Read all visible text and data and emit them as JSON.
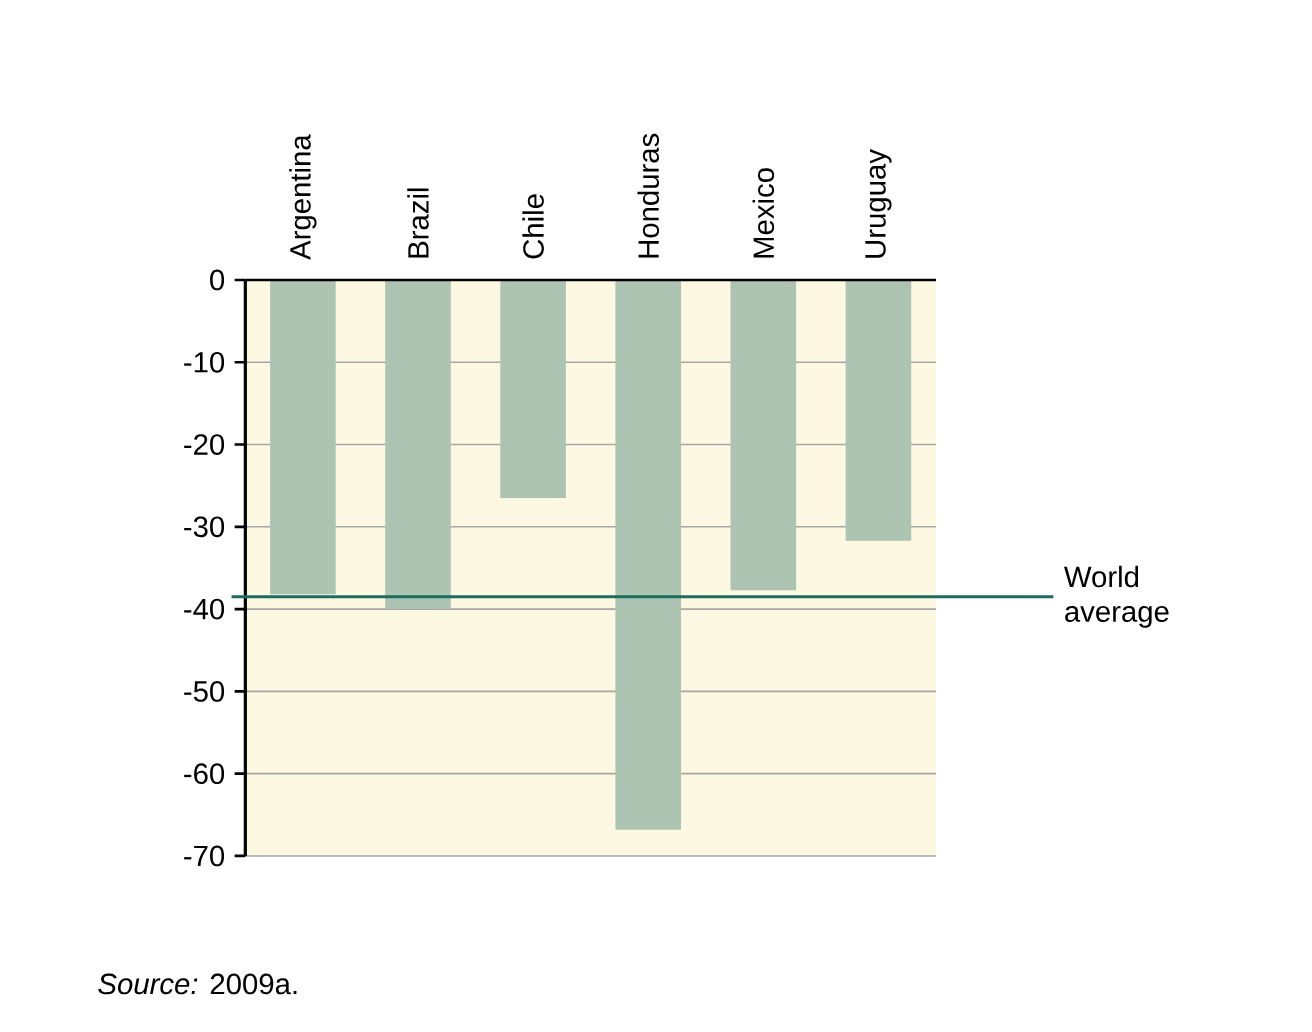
{
  "chart_data": {
    "type": "bar",
    "categories": [
      "Argentina",
      "Brazil",
      "Chile",
      "Honduras",
      "Mexico",
      "Uruguay"
    ],
    "values": [
      -38.2,
      -40.0,
      -26.5,
      -66.8,
      -37.7,
      -31.7
    ],
    "color": "#adc4b2",
    "ylim": [
      -70,
      0
    ],
    "yticks": [
      -70,
      -60,
      -50,
      -40,
      -30,
      -20,
      -10,
      0
    ],
    "grid": "y",
    "ref_lines": [
      {
        "axis": "y",
        "value": -38.5,
        "label": "World average",
        "color": "#1e6b5f"
      }
    ],
    "annotations": [
      "*Source:* 2009a."
    ]
  }
}
